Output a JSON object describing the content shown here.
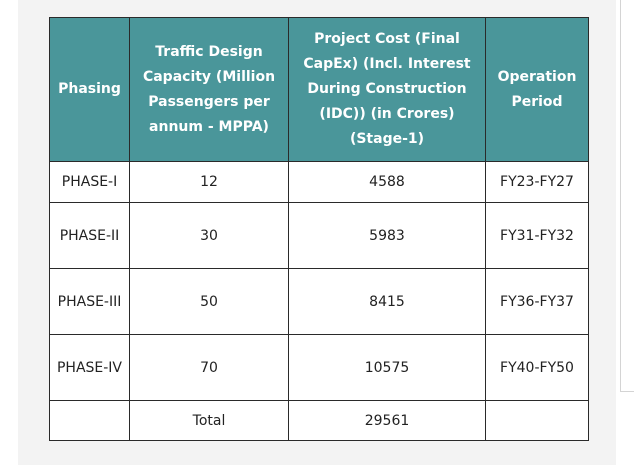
{
  "table": {
    "headers": [
      "Phasing",
      "Traffic Design Capacity (Million Passengers per annum - MPPA)",
      "Project Cost (Final CapEx) (Incl. Interest During Construction (IDC)) (in Crores) (Stage-1)",
      "Operation Period"
    ],
    "rows": [
      {
        "phasing": "PHASE-I",
        "capacity": "12",
        "cost": "4588",
        "period": "FY23-FY27"
      },
      {
        "phasing": "PHASE-II",
        "capacity": "30",
        "cost": "5983",
        "period": "FY31-FY32"
      },
      {
        "phasing": "PHASE-III",
        "capacity": "50",
        "cost": "8415",
        "period": "FY36-FY37"
      },
      {
        "phasing": "PHASE-IV",
        "capacity": "70",
        "cost": "10575",
        "period": "FY40-FY50"
      }
    ],
    "total": {
      "phasing": "",
      "label": "Total",
      "cost": "29561",
      "period": ""
    }
  }
}
